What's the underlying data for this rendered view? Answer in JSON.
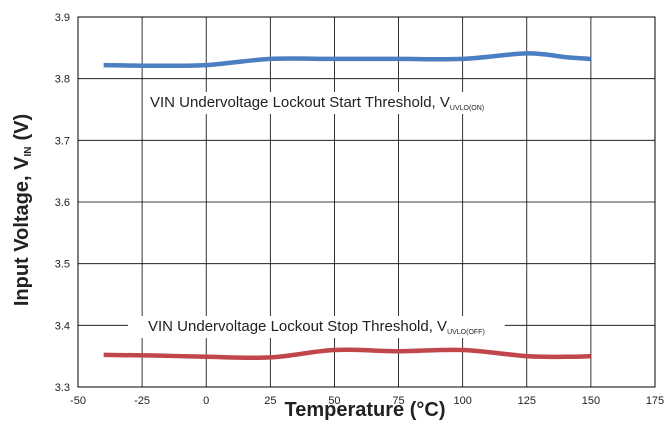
{
  "chart_data": {
    "type": "line",
    "title": "",
    "xlabel": "Temperature (°C)",
    "ylabel": {
      "main": "Input Voltage, V",
      "sub": "IN",
      "unit": "(V)"
    },
    "xlim": [
      -50,
      175
    ],
    "ylim": [
      3.3,
      3.9
    ],
    "xticks": [
      -50,
      -25,
      0,
      25,
      50,
      75,
      100,
      125,
      150,
      175
    ],
    "yticks": [
      3.3,
      3.4,
      3.5,
      3.6,
      3.7,
      3.8,
      3.9
    ],
    "xtick_labels": [
      "-50",
      "-25",
      "0",
      "25",
      "50",
      "75",
      "100",
      "125",
      "150",
      "175"
    ],
    "ytick_labels": [
      "3.3",
      "3.4",
      "3.5",
      "3.6",
      "3.7",
      "3.8",
      "3.9"
    ],
    "grid": true,
    "series": [
      {
        "name": "VIN Undervoltage Lockout Start Threshold, V",
        "name_sub": "UVLO(ON)",
        "color": "#4a7fc1",
        "x": [
          -40,
          -20,
          0,
          25,
          50,
          75,
          100,
          125,
          140,
          150
        ],
        "y": [
          3.822,
          3.821,
          3.822,
          3.832,
          3.832,
          3.832,
          3.832,
          3.841,
          3.835,
          3.832
        ]
      },
      {
        "name": "VIN Undervoltage Lockout Stop Threshold, V",
        "name_sub": "UVLO(OFF)",
        "color": "#c0464b",
        "x": [
          -40,
          -20,
          0,
          25,
          50,
          75,
          100,
          125,
          140,
          150
        ],
        "y": [
          3.352,
          3.351,
          3.349,
          3.348,
          3.36,
          3.358,
          3.36,
          3.35,
          3.349,
          3.35
        ]
      }
    ]
  }
}
